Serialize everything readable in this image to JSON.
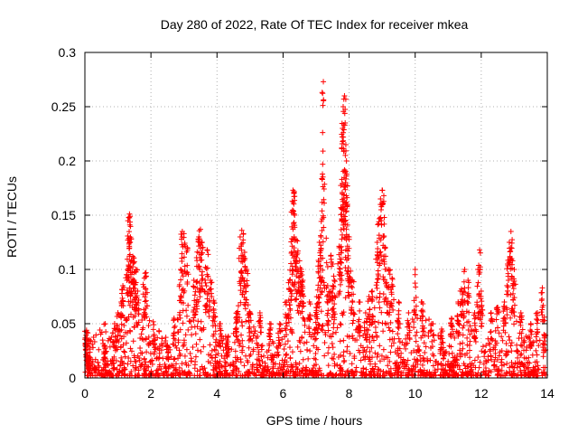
{
  "chart_data": {
    "type": "scatter",
    "title": "Day 280 of 2022, Rate Of TEC Index for receiver mkea",
    "xlabel": "GPS time / hours",
    "ylabel": "ROTI / TECUs",
    "xlim": [
      0,
      14
    ],
    "ylim": [
      0,
      0.3
    ],
    "x_ticks": [
      0,
      2,
      4,
      6,
      8,
      10,
      12,
      14
    ],
    "x_tick_labels": [
      "0",
      "2",
      "4",
      "6",
      "8",
      "10",
      "12",
      "14"
    ],
    "y_ticks": [
      0,
      0.05,
      0.1,
      0.15,
      0.2,
      0.25,
      0.3
    ],
    "y_tick_labels": [
      "0",
      "0.05",
      "0.1",
      "0.15",
      "0.2",
      "0.25",
      "0.3"
    ],
    "grid": true,
    "marker": "+",
    "series_color": "#ff0000",
    "series": [
      {
        "name": "ROTI",
        "points": [
          [
            0.0,
            0.043
          ],
          [
            0.05,
            0.044
          ],
          [
            0.08,
            0.02
          ],
          [
            0.1,
            0.015
          ],
          [
            0.3,
            0.01
          ],
          [
            0.6,
            0.03
          ],
          [
            0.9,
            0.05
          ],
          [
            1.0,
            0.06
          ],
          [
            1.1,
            0.07
          ],
          [
            1.15,
            0.085
          ],
          [
            1.3,
            0.127
          ],
          [
            1.33,
            0.148
          ],
          [
            1.35,
            0.151
          ],
          [
            1.37,
            0.149
          ],
          [
            1.4,
            0.128
          ],
          [
            1.45,
            0.112
          ],
          [
            1.5,
            0.107
          ],
          [
            1.55,
            0.1
          ],
          [
            1.6,
            0.08
          ],
          [
            1.8,
            0.092
          ],
          [
            1.85,
            0.097
          ],
          [
            2.1,
            0.04
          ],
          [
            2.5,
            0.03
          ],
          [
            2.7,
            0.055
          ],
          [
            2.9,
            0.1
          ],
          [
            2.95,
            0.135
          ],
          [
            3.0,
            0.133
          ],
          [
            3.1,
            0.12
          ],
          [
            3.3,
            0.09
          ],
          [
            3.4,
            0.116
          ],
          [
            3.45,
            0.13
          ],
          [
            3.5,
            0.137
          ],
          [
            3.55,
            0.125
          ],
          [
            3.65,
            0.102
          ],
          [
            3.7,
            0.118
          ],
          [
            3.8,
            0.09
          ],
          [
            3.9,
            0.07
          ],
          [
            4.1,
            0.05
          ],
          [
            4.3,
            0.035
          ],
          [
            4.6,
            0.06
          ],
          [
            4.7,
            0.13
          ],
          [
            4.75,
            0.136
          ],
          [
            4.8,
            0.133
          ],
          [
            4.85,
            0.11
          ],
          [
            4.9,
            0.1
          ],
          [
            5.0,
            0.06
          ],
          [
            5.3,
            0.06
          ],
          [
            5.6,
            0.05
          ],
          [
            5.9,
            0.05
          ],
          [
            6.1,
            0.07
          ],
          [
            6.2,
            0.09
          ],
          [
            6.25,
            0.115
          ],
          [
            6.28,
            0.163
          ],
          [
            6.3,
            0.173
          ],
          [
            6.33,
            0.17
          ],
          [
            6.35,
            0.15
          ],
          [
            6.4,
            0.127
          ],
          [
            6.45,
            0.117
          ],
          [
            6.5,
            0.108
          ],
          [
            6.55,
            0.1
          ],
          [
            6.6,
            0.09
          ],
          [
            6.8,
            0.07
          ],
          [
            7.0,
            0.065
          ],
          [
            7.05,
            0.081
          ],
          [
            7.1,
            0.125
          ],
          [
            7.15,
            0.13
          ],
          [
            7.18,
            0.154
          ],
          [
            7.2,
            0.197
          ],
          [
            7.22,
            0.273
          ],
          [
            7.35,
            0.085
          ],
          [
            7.45,
            0.113
          ],
          [
            7.5,
            0.105
          ],
          [
            7.55,
            0.09
          ],
          [
            7.7,
            0.12
          ],
          [
            7.75,
            0.157
          ],
          [
            7.78,
            0.183
          ],
          [
            7.8,
            0.23
          ],
          [
            7.82,
            0.25
          ],
          [
            7.84,
            0.257
          ],
          [
            7.86,
            0.26
          ],
          [
            7.88,
            0.235
          ],
          [
            7.9,
            0.215
          ],
          [
            7.92,
            0.2
          ],
          [
            7.95,
            0.16
          ],
          [
            8.0,
            0.13
          ],
          [
            8.1,
            0.09
          ],
          [
            8.3,
            0.07
          ],
          [
            8.5,
            0.06
          ],
          [
            8.6,
            0.075
          ],
          [
            8.7,
            0.08
          ],
          [
            8.85,
            0.125
          ],
          [
            8.9,
            0.144
          ],
          [
            8.95,
            0.165
          ],
          [
            9.0,
            0.173
          ],
          [
            9.05,
            0.168
          ],
          [
            9.1,
            0.12
          ],
          [
            9.2,
            0.1
          ],
          [
            9.3,
            0.092
          ],
          [
            9.5,
            0.07
          ],
          [
            9.8,
            0.06
          ],
          [
            10.0,
            0.1
          ],
          [
            10.2,
            0.07
          ],
          [
            10.5,
            0.05
          ],
          [
            10.8,
            0.045
          ],
          [
            11.1,
            0.055
          ],
          [
            11.3,
            0.07
          ],
          [
            11.4,
            0.082
          ],
          [
            11.5,
            0.1
          ],
          [
            11.6,
            0.09
          ],
          [
            11.8,
            0.06
          ],
          [
            11.9,
            0.1
          ],
          [
            11.95,
            0.118
          ],
          [
            12.0,
            0.08
          ],
          [
            12.3,
            0.06
          ],
          [
            12.5,
            0.065
          ],
          [
            12.7,
            0.07
          ],
          [
            12.8,
            0.105
          ],
          [
            12.85,
            0.125
          ],
          [
            12.9,
            0.135
          ],
          [
            12.95,
            0.108
          ],
          [
            13.0,
            0.1
          ],
          [
            13.2,
            0.06
          ],
          [
            13.5,
            0.05
          ],
          [
            13.7,
            0.06
          ],
          [
            13.85,
            0.083
          ],
          [
            13.9,
            0.04
          ]
        ]
      }
    ]
  }
}
